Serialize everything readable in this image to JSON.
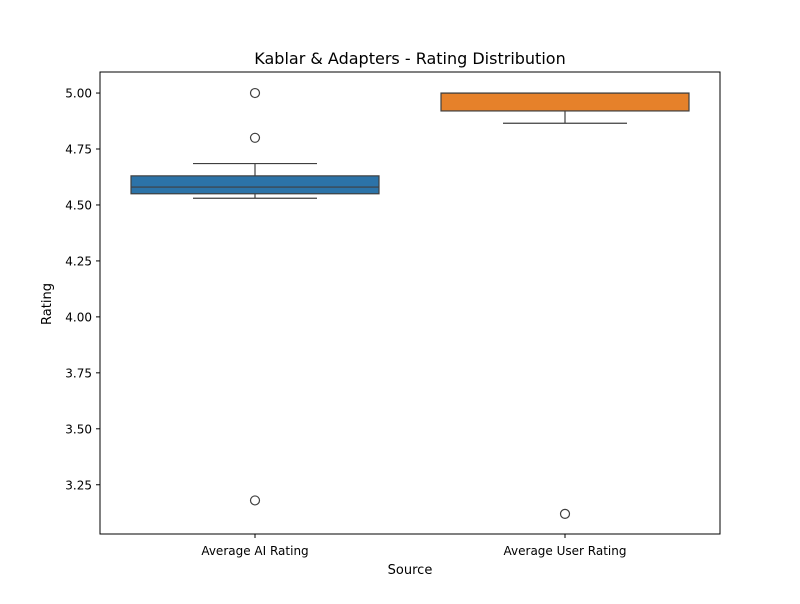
{
  "chart_data": {
    "type": "box",
    "title": "Kablar & Adapters - Rating Distribution",
    "xlabel": "Source",
    "ylabel": "Rating",
    "ylim": [
      3.03,
      5.094
    ],
    "yticks": [
      3.25,
      3.5,
      3.75,
      4.0,
      4.25,
      4.5,
      4.75,
      5.0
    ],
    "ytick_labels": [
      "3.25",
      "3.50",
      "3.75",
      "4.00",
      "4.25",
      "4.50",
      "4.75",
      "5.00"
    ],
    "grid": false,
    "categories": [
      "Average AI Rating",
      "Average User Rating"
    ],
    "boxes": [
      {
        "category": "Average AI Rating",
        "color": "#2c73a8",
        "whisker_low": 4.53,
        "q1": 4.55,
        "median": 4.58,
        "q3": 4.63,
        "whisker_high": 4.685,
        "outliers": [
          5.0,
          4.8,
          3.18
        ]
      },
      {
        "category": "Average User Rating",
        "color": "#e6812a",
        "whisker_low": 4.865,
        "q1": 4.92,
        "median": 5.0,
        "q3": 5.0,
        "whisker_high": 5.0,
        "outliers": [
          3.12
        ]
      }
    ]
  }
}
